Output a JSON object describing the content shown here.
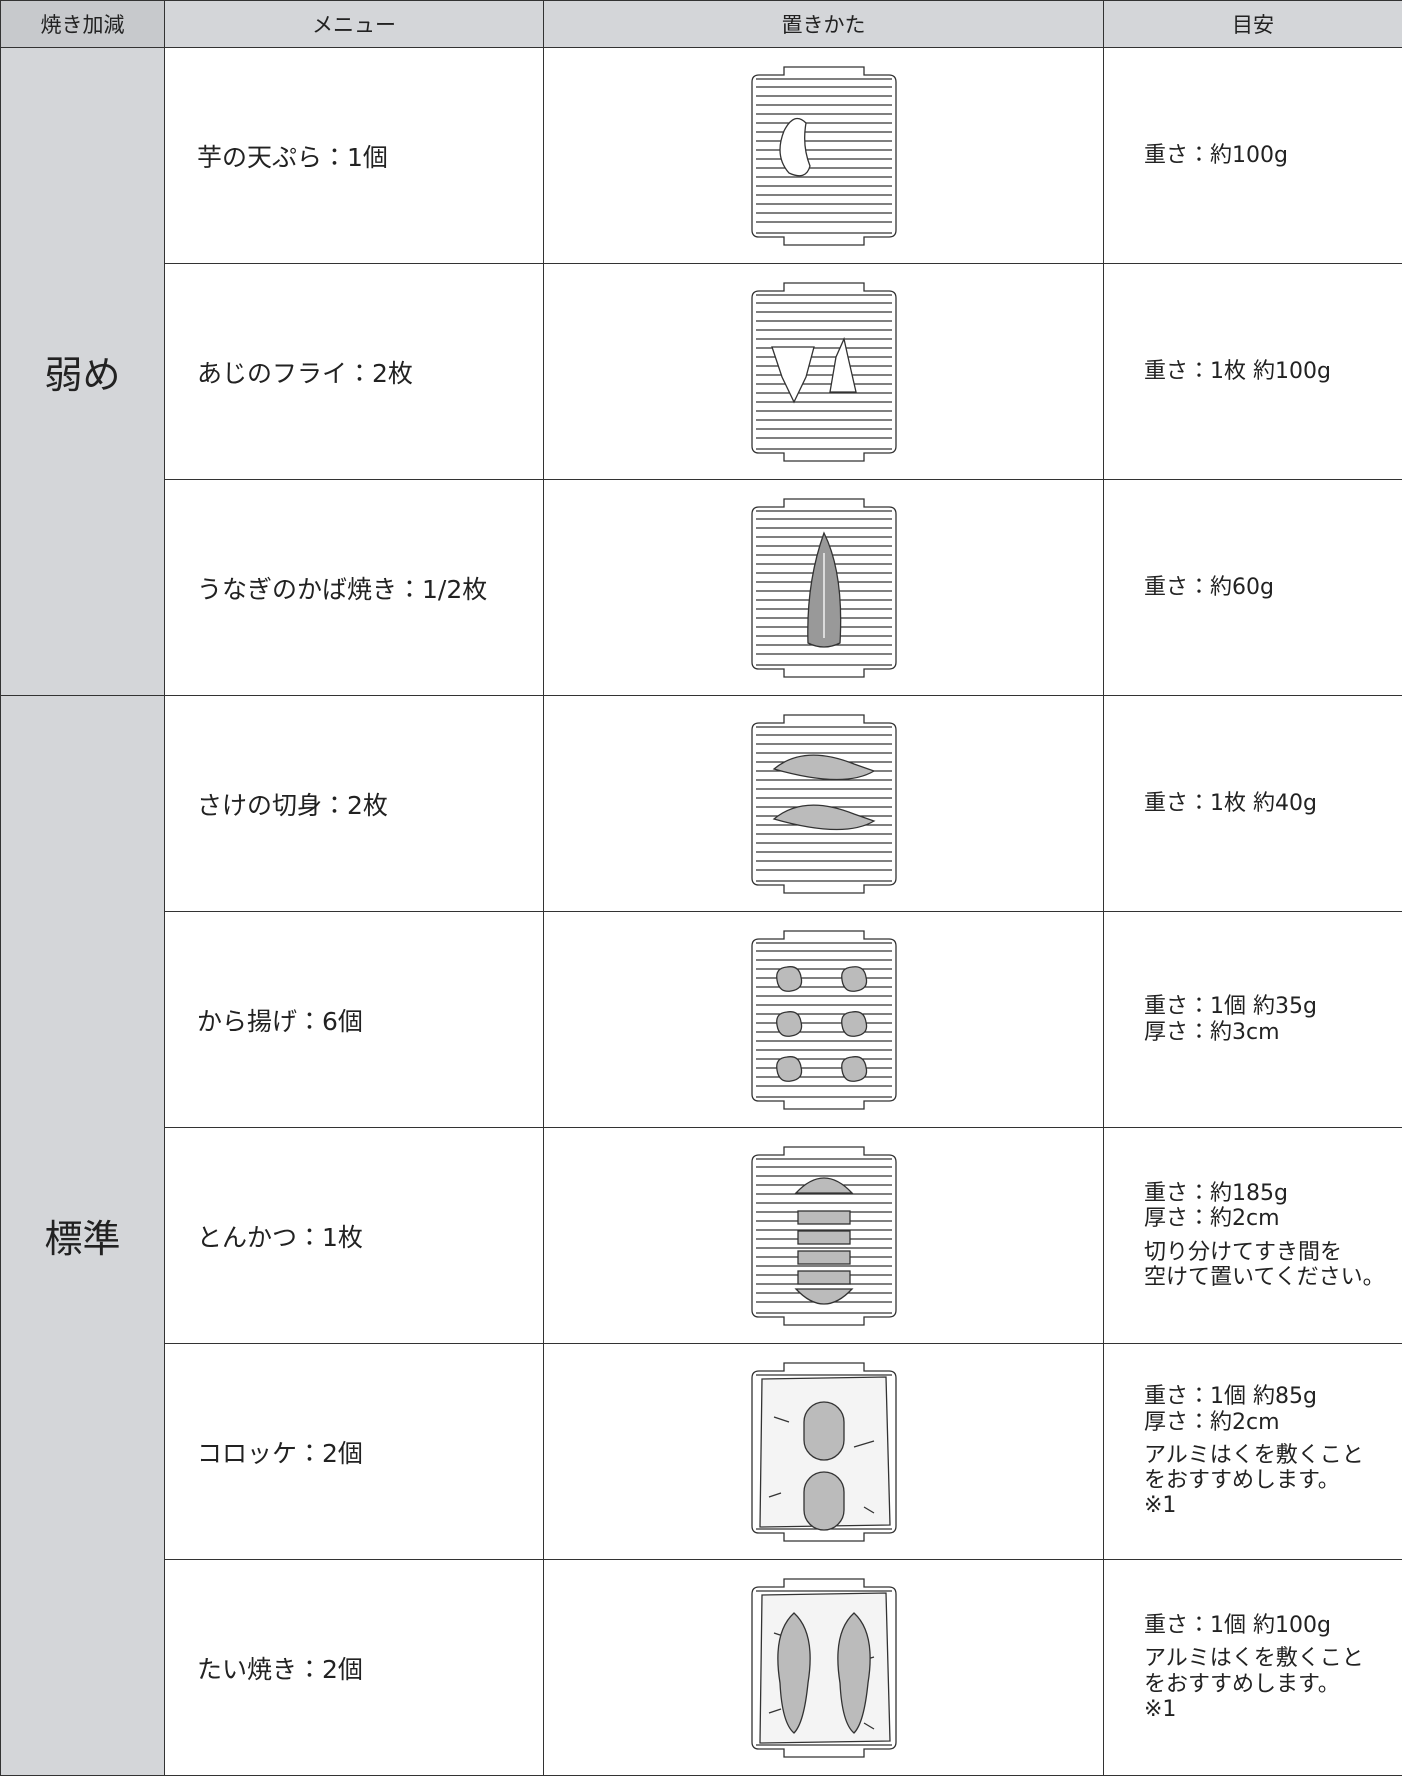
{
  "table": {
    "header": [
      "焼き加減",
      "メニュー",
      "置きかた",
      "目安"
    ],
    "groups": [
      {
        "level": "弱め",
        "rows": [
          {
            "menu": "芋の天ぷら：1個",
            "guide": [
              "重さ：約100g"
            ]
          },
          {
            "menu": "あじのフライ：2枚",
            "guide": [
              "重さ：1枚 約100g"
            ]
          },
          {
            "menu": "うなぎのかば焼き：1/2枚",
            "guide": [
              "重さ：約60g"
            ]
          }
        ]
      },
      {
        "level": "標準",
        "rows": [
          {
            "menu": "さけの切身：2枚",
            "guide": [
              "重さ：1枚 約40g"
            ]
          },
          {
            "menu": "から揚げ：6個",
            "guide": [
              "重さ：1個 約35g",
              "厚さ：約3cm"
            ]
          },
          {
            "menu": "とんかつ：1枚",
            "guide": [
              "重さ：約185g",
              "厚さ：約2cm"
            ],
            "note": [
              "切り分けてすき間を",
              "空けて置いてください。"
            ]
          },
          {
            "menu": "コロッケ：2個",
            "guide": [
              "重さ：1個 約85g",
              "厚さ：約2cm"
            ],
            "note": [
              "アルミはくを敷くこと",
              "をおすすめします。",
              "※1"
            ]
          },
          {
            "menu": "たい焼き：2個",
            "guide": [
              "重さ：1個 約100g"
            ],
            "note": [
              "アルミはくを敷くこと",
              "をおすすめします。",
              "※1"
            ]
          }
        ]
      }
    ]
  }
}
